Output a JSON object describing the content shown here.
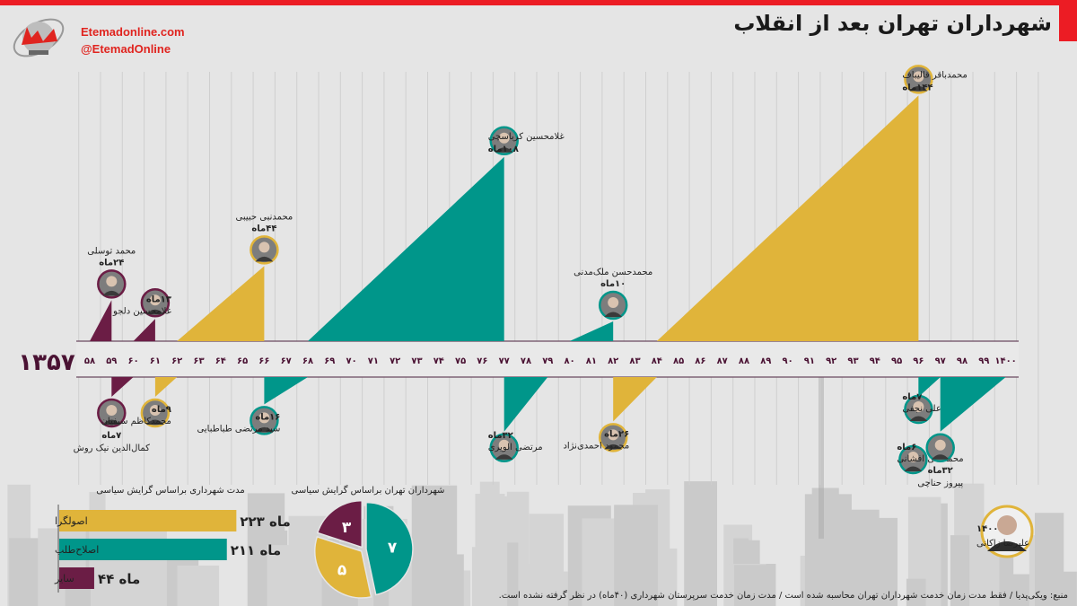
{
  "header": {
    "title": "شهرداران تهران بعد از انقلاب",
    "website": "Etemadonline.com",
    "handle": "@EtemadOnline",
    "logo_text": "اعتماد ONLINE"
  },
  "colors": {
    "principlist": "#e0b43a",
    "reformist": "#00968a",
    "other": "#6b1d45",
    "brand_red": "#ec1c24"
  },
  "timeline": {
    "start_label": "۱۳۵۷",
    "ticks": [
      "۵۸",
      "۵۹",
      "۶۰",
      "۶۱",
      "۶۲",
      "۶۳",
      "۶۴",
      "۶۵",
      "۶۶",
      "۶۷",
      "۶۸",
      "۶۹",
      "۷۰",
      "۷۱",
      "۷۲",
      "۷۳",
      "۷۴",
      "۷۵",
      "۷۶",
      "۷۷",
      "۷۸",
      "۷۹",
      "۸۰",
      "۸۱",
      "۸۲",
      "۸۳",
      "۸۴",
      "۸۵",
      "۸۶",
      "۸۷",
      "۸۸",
      "۸۹",
      "۹۰",
      "۹۱",
      "۹۲",
      "۹۳",
      "۹۴",
      "۹۵",
      "۹۶",
      "۹۷",
      "۹۸",
      "۹۹",
      "۱۴۰۰"
    ],
    "tick_years": [
      1358,
      1359,
      1360,
      1361,
      1362,
      1363,
      1364,
      1365,
      1366,
      1367,
      1368,
      1369,
      1370,
      1371,
      1372,
      1373,
      1374,
      1375,
      1376,
      1377,
      1378,
      1379,
      1380,
      1381,
      1382,
      1383,
      1384,
      1385,
      1386,
      1387,
      1388,
      1389,
      1390,
      1391,
      1392,
      1393,
      1394,
      1395,
      1396,
      1397,
      1398,
      1399,
      1400
    ]
  },
  "mayors": [
    {
      "name": "محمد توسلی",
      "months": 24,
      "months_label": "۲۴ماه",
      "start": 1358,
      "end": 1359,
      "side": "above",
      "group": "other"
    },
    {
      "name": "کمال‌الدین نیک روش",
      "months": 7,
      "months_label": "۷ماه",
      "start": 1359,
      "end": 1360,
      "side": "below",
      "group": "other"
    },
    {
      "name": "غلامحسین دلجو",
      "months": 13,
      "months_label": "۱۳ماه",
      "start": 1360,
      "end": 1361,
      "side": "above",
      "group": "other"
    },
    {
      "name": "محمدکاظم سیفیان",
      "months": 9,
      "months_label": "۹ماه",
      "start": 1361,
      "end": 1362,
      "side": "below",
      "group": "principlist"
    },
    {
      "name": "محمدنبی حبیبی",
      "months": 44,
      "months_label": "۴۴ماه",
      "start": 1362,
      "end": 1366,
      "side": "above",
      "group": "principlist"
    },
    {
      "name": "سید مرتضی طباطبایی",
      "months": 16,
      "months_label": "۱۶ماه",
      "start": 1366,
      "end": 1368,
      "side": "below",
      "group": "reformist"
    },
    {
      "name": "غلامحسین کرباسچی",
      "months": 108,
      "months_label": "۱۰۸ماه",
      "start": 1368,
      "end": 1377,
      "side": "above",
      "group": "reformist"
    },
    {
      "name": "مرتضی الویری",
      "months": 32,
      "months_label": "۳۲ماه",
      "start": 1377,
      "end": 1379,
      "side": "below",
      "group": "reformist"
    },
    {
      "name": "محمدحسن ملک‌مدنی",
      "months": 10,
      "months_label": "۱۰ماه",
      "start": 1380,
      "end": 1382,
      "side": "above",
      "group": "reformist"
    },
    {
      "name": "محمود احمدی‌نژاد",
      "months": 26,
      "months_label": "۲۶ماه",
      "start": 1382,
      "end": 1384,
      "side": "below",
      "group": "principlist"
    },
    {
      "name": "محمدباقر قالیباف",
      "months": 144,
      "months_label": "۱۴۴ماه",
      "start": 1384,
      "end": 1396,
      "side": "above",
      "group": "principlist"
    },
    {
      "name": "محمدعلی نجفی",
      "months": 7,
      "months_label": "۷ماه",
      "start": 1396,
      "end": 1397,
      "side": "below",
      "group": "reformist"
    },
    {
      "name": "محمدعلی افشانی",
      "months": 6,
      "months_label": "۶ماه",
      "start": 1396,
      "end": 1397,
      "side": "below",
      "group": "reformist"
    },
    {
      "name": "پیروز حناچی",
      "months": 32,
      "months_label": "۳۲ماه",
      "start": 1397,
      "end": 1400,
      "side": "below",
      "group": "reformist"
    }
  ],
  "current_mayor": {
    "name": "علیرضا زاکانی",
    "year_label": "۱۴۰۰"
  },
  "chart_data": [
    {
      "type": "bar",
      "orientation": "horizontal",
      "title": "مدت شهرداری براساس گرایش سیاسی",
      "categories": [
        "اصولگرا",
        "اصلاح‌طلب",
        "سایر"
      ],
      "values": [
        223,
        211,
        44
      ],
      "value_labels": [
        "۲۲۳ ماه",
        "۲۱۱ ماه",
        "۴۴ ماه"
      ],
      "unit": "ماه",
      "colors": [
        "#e0b43a",
        "#00968a",
        "#6b1d45"
      ]
    },
    {
      "type": "pie",
      "title": "شهرداران تهران براساس گرایش سیاسی",
      "slices": [
        {
          "category": "اصلاح‌طلب",
          "value": 7,
          "label": "۷",
          "color": "#00968a"
        },
        {
          "category": "اصولگرا",
          "value": 5,
          "label": "۵",
          "color": "#e0b43a"
        },
        {
          "category": "سایر",
          "value": 3,
          "label": "۳",
          "color": "#6b1d45"
        }
      ]
    }
  ],
  "footer": {
    "source": "منبع: ویکی‌پدیا / فقط مدت زمان خدمت شهرداران تهران محاسبه شده است / مدت زمان خدمت سرپرستان شهرداری (۴۰ماه) در نظر گرفته نشده است."
  }
}
